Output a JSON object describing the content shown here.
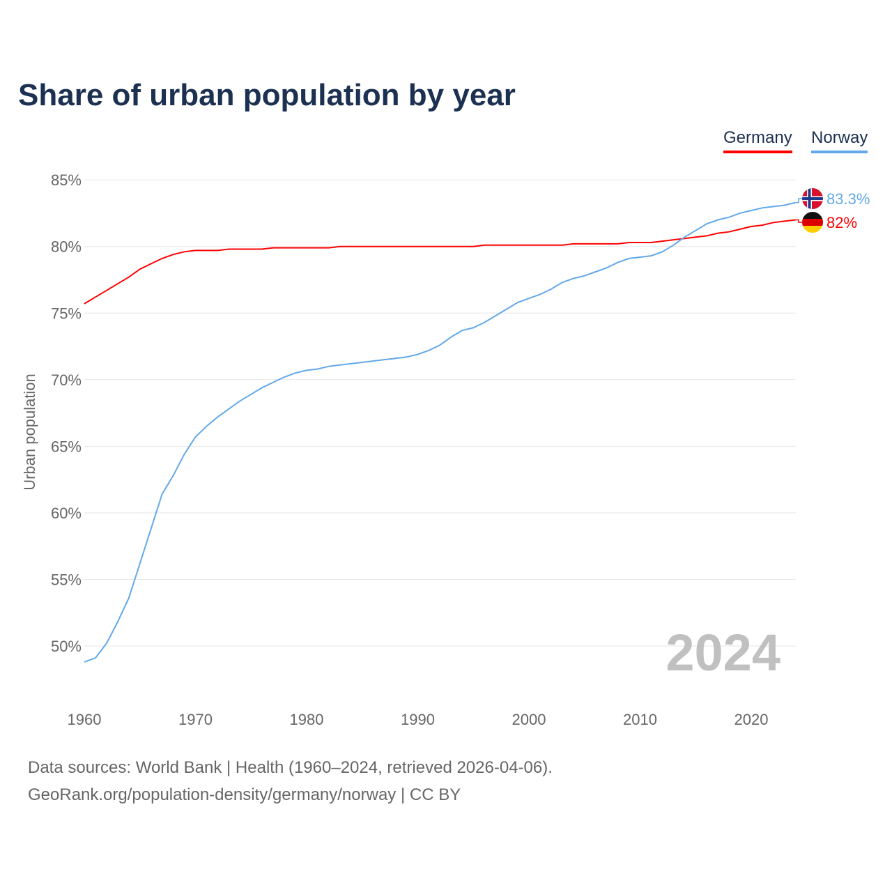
{
  "chart_data": {
    "type": "line",
    "title": "Share of urban population by year",
    "xlabel": "",
    "ylabel": "Urban population",
    "xlim": [
      1960,
      2024
    ],
    "ylim": [
      47,
      86
    ],
    "yticks": [
      50,
      55,
      60,
      65,
      70,
      75,
      80,
      85
    ],
    "ytick_labels": [
      "50%",
      "55%",
      "60%",
      "65%",
      "70%",
      "75%",
      "80%",
      "85%"
    ],
    "xticks": [
      1960,
      1970,
      1980,
      1990,
      2000,
      2010,
      2020
    ],
    "xtick_labels": [
      "1960",
      "1970",
      "1980",
      "1990",
      "2000",
      "2010",
      "2020"
    ],
    "grid": true,
    "legend_position": "top-right",
    "year_watermark": "2024",
    "x": [
      1960,
      1961,
      1962,
      1963,
      1964,
      1965,
      1966,
      1967,
      1968,
      1969,
      1970,
      1971,
      1972,
      1973,
      1974,
      1975,
      1976,
      1977,
      1978,
      1979,
      1980,
      1981,
      1982,
      1983,
      1984,
      1985,
      1986,
      1987,
      1988,
      1989,
      1990,
      1991,
      1992,
      1993,
      1994,
      1995,
      1996,
      1997,
      1998,
      1999,
      2000,
      2001,
      2002,
      2003,
      2004,
      2005,
      2006,
      2007,
      2008,
      2009,
      2010,
      2011,
      2012,
      2013,
      2014,
      2015,
      2016,
      2017,
      2018,
      2019,
      2020,
      2021,
      2022,
      2023,
      2024
    ],
    "series": [
      {
        "name": "Germany",
        "color": "#ff0000",
        "end_label": "82%",
        "values": [
          75.7,
          76.2,
          76.7,
          77.2,
          77.7,
          78.3,
          78.7,
          79.1,
          79.4,
          79.6,
          79.7,
          79.7,
          79.7,
          79.8,
          79.8,
          79.8,
          79.8,
          79.9,
          79.9,
          79.9,
          79.9,
          79.9,
          79.9,
          80.0,
          80.0,
          80.0,
          80.0,
          80.0,
          80.0,
          80.0,
          80.0,
          80.0,
          80.0,
          80.0,
          80.0,
          80.0,
          80.1,
          80.1,
          80.1,
          80.1,
          80.1,
          80.1,
          80.1,
          80.1,
          80.2,
          80.2,
          80.2,
          80.2,
          80.2,
          80.3,
          80.3,
          80.3,
          80.4,
          80.5,
          80.6,
          80.7,
          80.8,
          81.0,
          81.1,
          81.3,
          81.5,
          81.6,
          81.8,
          81.9,
          82.0
        ]
      },
      {
        "name": "Norway",
        "color": "#62a8ea",
        "end_label": "83.3%",
        "values": [
          48.8,
          49.1,
          50.2,
          51.8,
          53.6,
          56.2,
          58.8,
          61.4,
          62.8,
          64.4,
          65.7,
          66.5,
          67.2,
          67.8,
          68.4,
          68.9,
          69.4,
          69.8,
          70.2,
          70.5,
          70.7,
          70.8,
          71.0,
          71.1,
          71.2,
          71.3,
          71.4,
          71.5,
          71.6,
          71.7,
          71.9,
          72.2,
          72.6,
          73.2,
          73.7,
          73.9,
          74.3,
          74.8,
          75.3,
          75.8,
          76.1,
          76.4,
          76.8,
          77.3,
          77.6,
          77.8,
          78.1,
          78.4,
          78.8,
          79.1,
          79.2,
          79.3,
          79.6,
          80.1,
          80.7,
          81.2,
          81.7,
          82.0,
          82.2,
          82.5,
          82.7,
          82.9,
          83.0,
          83.1,
          83.3
        ]
      }
    ]
  },
  "footer": {
    "line1": "Data sources: World Bank | Health (1960–2024, retrieved 2026-04-06).",
    "line2": "GeoRank.org/population-density/germany/norway | CC BY"
  }
}
